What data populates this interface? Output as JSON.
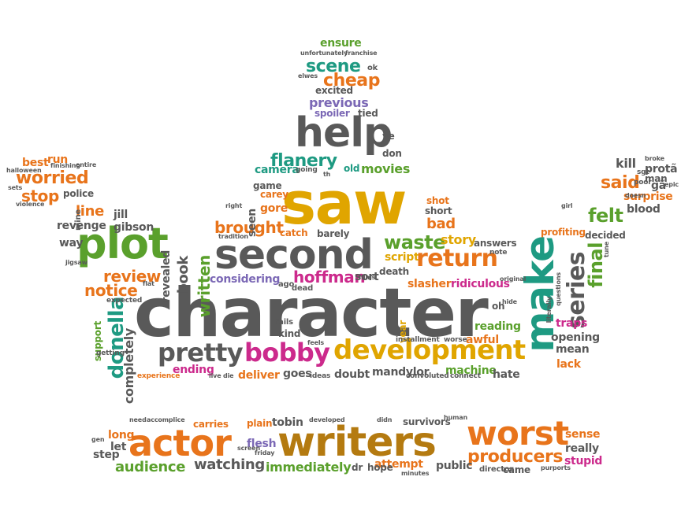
{
  "palette": {
    "gray": "#595959",
    "gold": "#e0a500",
    "orange": "#e8741b",
    "green": "#5aa02c",
    "teal": "#1e9a82",
    "magenta": "#cc2a8c",
    "purple": "#7b68b5",
    "brown": "#b47a10"
  },
  "words": [
    "character",
    "saw",
    "second",
    "help",
    "plot",
    "make",
    "writers",
    "actor",
    "worst",
    "development",
    "bobby",
    "pretty",
    "return",
    "series",
    "producers",
    "audience",
    "watching",
    "immediately",
    "flesh",
    "tobin",
    "attempt",
    "hope",
    "survivors",
    "waste",
    "brought",
    "hoffman",
    "donella",
    "review",
    "notice",
    "line",
    "final",
    "felt",
    "said",
    "worried",
    "stop",
    "best",
    "run",
    "scene",
    "cheap",
    "ensure",
    "previous",
    "spoiler",
    "excited",
    "flanery",
    "movies",
    "old",
    "camera",
    "carey",
    "game",
    "gore",
    "catch",
    "barely",
    "story",
    "answers",
    "script",
    "death",
    "slasher",
    "ridiculous",
    "shot",
    "short",
    "bad",
    "considering",
    "written",
    "book",
    "revealed",
    "jill",
    "gibson",
    "revenge",
    "kill",
    "surprise",
    "blood",
    "decided",
    "profiting",
    "traps",
    "opening",
    "mean",
    "lack",
    "reading",
    "awful",
    "year",
    "machine",
    "hate",
    "mandylor",
    "doubt",
    "goes",
    "ending",
    "deliver",
    "completely",
    "support",
    "way",
    "police",
    "halloween",
    "carries",
    "plain",
    "long",
    "let",
    "step",
    "really",
    "sense",
    "stupid",
    "came",
    "public",
    "dr",
    "director",
    "mine",
    "seen",
    "tied",
    "don",
    "ve",
    "sort",
    "kind",
    "fails",
    "ago",
    "dead",
    "connect",
    "ideas",
    "convoluted",
    "worse",
    "installment",
    "expected",
    "experience",
    "getting",
    "tradition",
    "right",
    "going",
    "th",
    "sets",
    "violence",
    "jigsaw",
    "flat",
    "finishing",
    "entire",
    "unfortunately",
    "franchise",
    "elwes",
    "ok",
    "protã",
    "gã",
    "sgt",
    "man",
    "poor",
    "girl",
    "tune",
    "literally",
    "questions",
    "original",
    "hide",
    "oh",
    "note",
    "need",
    "accomplice",
    "developed",
    "didn",
    "human",
    "screen",
    "friday",
    "gen",
    "purports",
    "minutes",
    "films",
    "feels",
    "live",
    "die",
    "epic",
    "broke",
    "doesn"
  ]
}
